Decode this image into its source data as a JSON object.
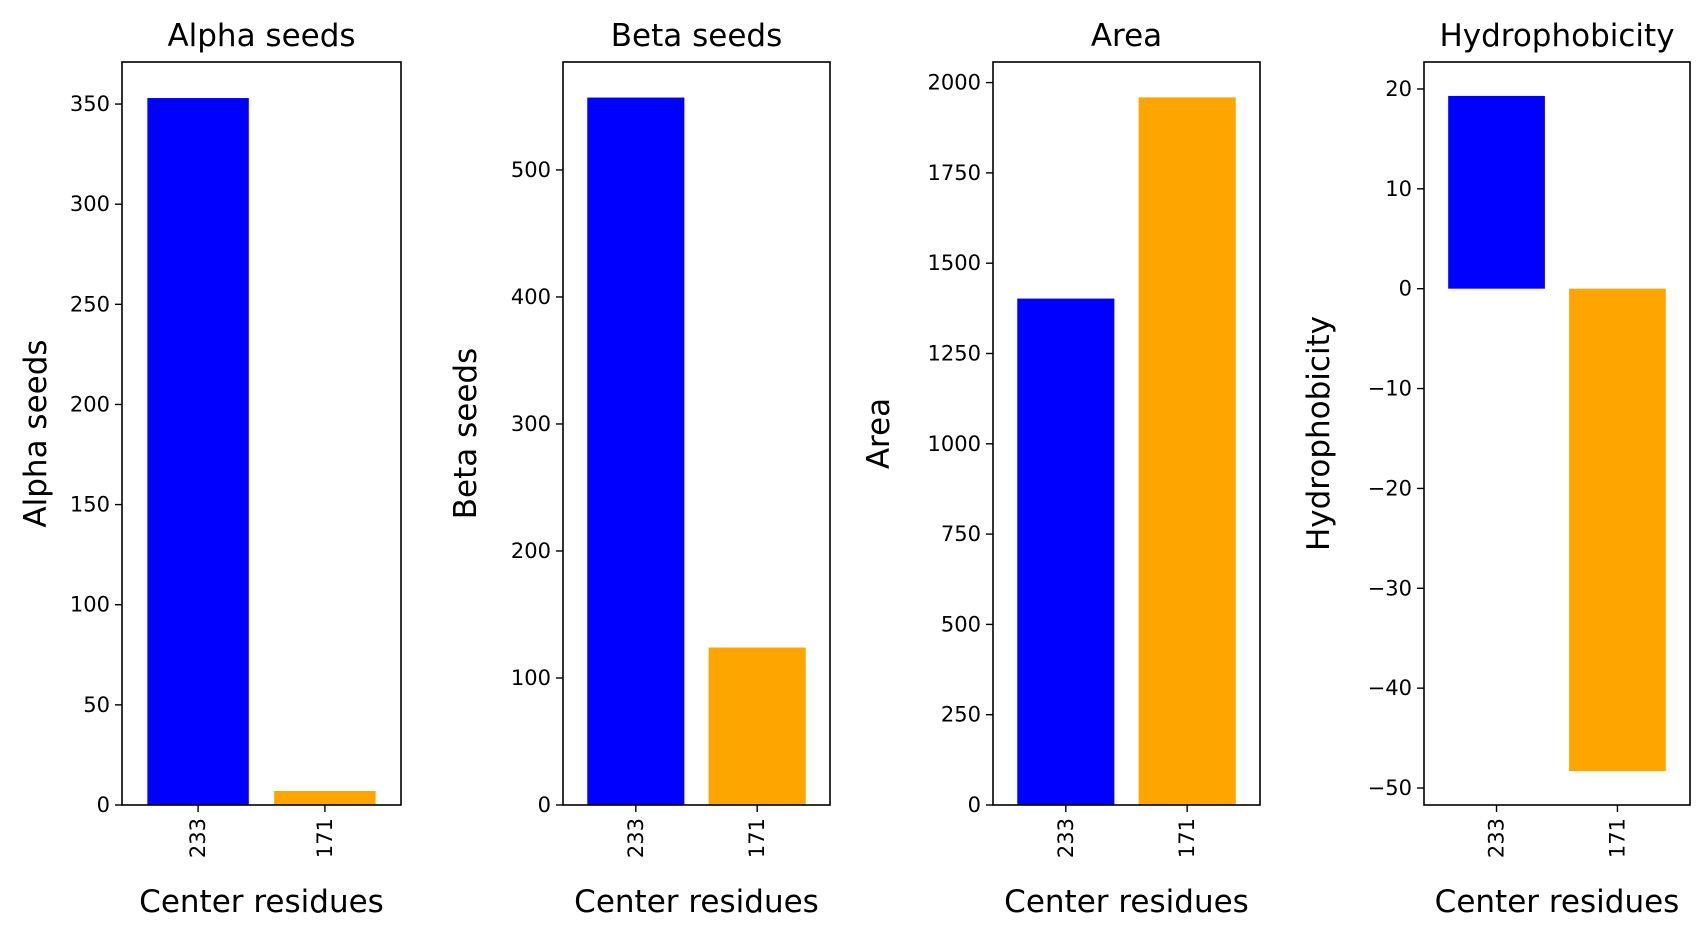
{
  "colors": {
    "series_colors": [
      "#0000ff",
      "#ffa500"
    ],
    "axes": "#000000",
    "background": "#ffffff"
  },
  "chart_data": [
    {
      "type": "bar",
      "title": "Alpha seeds",
      "xlabel": "Center residues",
      "ylabel": "Alpha seeds",
      "categories": [
        "233",
        "171"
      ],
      "values": [
        353,
        7
      ],
      "ylim": [
        0,
        371
      ],
      "yticks": [
        0,
        50,
        100,
        150,
        200,
        250,
        300,
        350
      ],
      "grid": false,
      "legend": "none"
    },
    {
      "type": "bar",
      "title": "Beta seeds",
      "xlabel": "Center residues",
      "ylabel": "Beta seeds",
      "categories": [
        "233",
        "171"
      ],
      "values": [
        557,
        124
      ],
      "ylim": [
        0,
        585
      ],
      "yticks": [
        0,
        100,
        200,
        300,
        400,
        500
      ],
      "grid": false,
      "legend": "none"
    },
    {
      "type": "bar",
      "title": "Area",
      "xlabel": "Center residues",
      "ylabel": "Area",
      "categories": [
        "233",
        "171"
      ],
      "values": [
        1402,
        1959
      ],
      "ylim": [
        0,
        2057
      ],
      "yticks": [
        0,
        250,
        500,
        750,
        1000,
        1250,
        1500,
        1750,
        2000
      ],
      "grid": false,
      "legend": "none"
    },
    {
      "type": "bar",
      "title": "Hydrophobicity",
      "xlabel": "Center residues",
      "ylabel": "Hydrophobicity",
      "categories": [
        "233",
        "171"
      ],
      "values": [
        19.3,
        -48.3
      ],
      "ylim": [
        -51.7,
        22.7
      ],
      "yticks": [
        -50,
        -40,
        -30,
        -20,
        -10,
        0,
        10,
        20
      ],
      "grid": false,
      "legend": "none"
    }
  ]
}
